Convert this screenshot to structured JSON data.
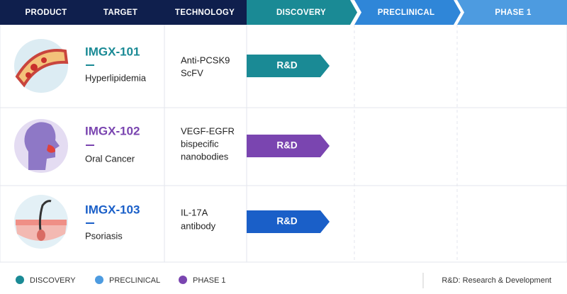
{
  "header": {
    "columns": [
      "PRODUCT",
      "TARGET",
      "TECHNOLOGY",
      "DISCOVERY",
      "PRECLINICAL",
      "PHASE 1"
    ]
  },
  "rows": [
    {
      "product": "IMGX-101",
      "target": "Hyperlipidemia",
      "technology": [
        "Anti-PCSK9",
        "ScFV"
      ],
      "stage": "R&D"
    },
    {
      "product": "IMGX-102",
      "target": "Oral Cancer",
      "technology": [
        "VEGF-EGFR",
        "bispecific",
        "nanobodies"
      ],
      "stage": "R&D"
    },
    {
      "product": "IMGX-103",
      "target": "Psoriasis",
      "technology": [
        "IL-17A",
        "antibody"
      ],
      "stage": "R&D"
    }
  ],
  "legend": [
    "DISCOVERY",
    "PRECLINICAL",
    "PHASE 1"
  ],
  "footnote": "R&D: Research & Development"
}
